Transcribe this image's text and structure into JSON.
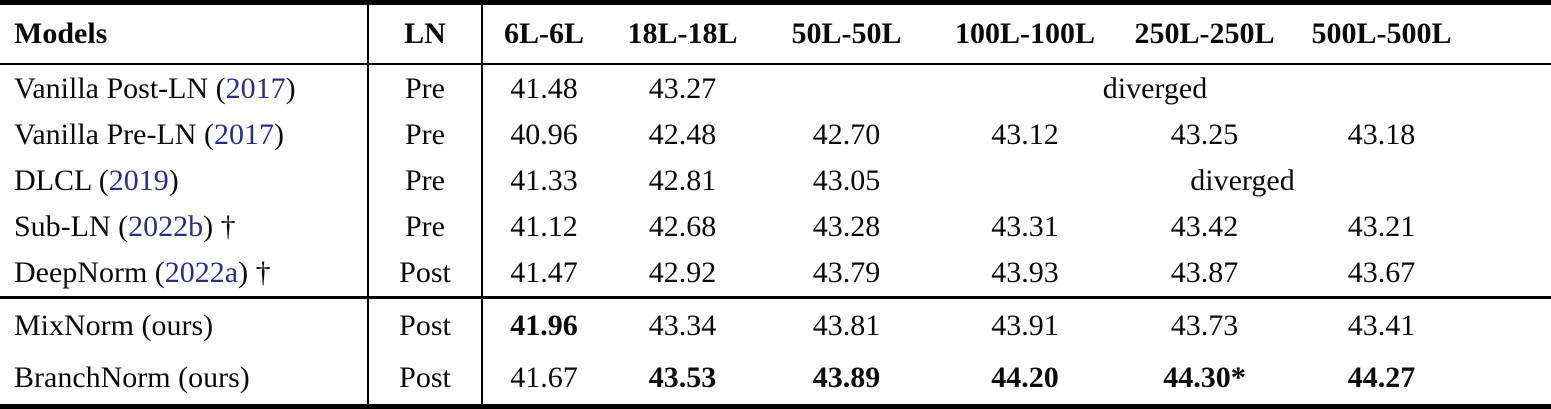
{
  "table": {
    "header": {
      "models": "Models",
      "ln": "LN",
      "scales": [
        "6L-6L",
        "18L-18L",
        "50L-50L",
        "100L-100L",
        "250L-250L",
        "500L-500L"
      ]
    },
    "sections": [
      {
        "rows": [
          {
            "model_prefix": "Vanilla Post-LN (",
            "citation": "2017",
            "model_suffix": ")",
            "ln": "Pre",
            "cells": [
              {
                "t": "41.48"
              },
              {
                "t": "43.27"
              },
              {
                "t": "diverged",
                "span": 4
              }
            ]
          },
          {
            "model_prefix": "Vanilla Pre-LN (",
            "citation": "2017",
            "model_suffix": ")",
            "ln": "Pre",
            "cells": [
              {
                "t": "40.96"
              },
              {
                "t": "42.48"
              },
              {
                "t": "42.70"
              },
              {
                "t": "43.12"
              },
              {
                "t": "43.25"
              },
              {
                "t": "43.18"
              }
            ]
          },
          {
            "model_prefix": "DLCL (",
            "citation": "2019",
            "model_suffix": ")",
            "ln": "Pre",
            "cells": [
              {
                "t": "41.33"
              },
              {
                "t": "42.81"
              },
              {
                "t": "43.05"
              },
              {
                "t": "diverged",
                "span": 3
              }
            ]
          },
          {
            "model_prefix": "Sub-LN (",
            "citation": "2022b",
            "model_suffix": ") †",
            "ln": "Pre",
            "cells": [
              {
                "t": "41.12"
              },
              {
                "t": "42.68"
              },
              {
                "t": "43.28"
              },
              {
                "t": "43.31"
              },
              {
                "t": "43.42"
              },
              {
                "t": "43.21"
              }
            ]
          },
          {
            "model_prefix": "DeepNorm (",
            "citation": "2022a",
            "model_suffix": ") †",
            "ln": "Post",
            "cells": [
              {
                "t": "41.47"
              },
              {
                "t": "42.92"
              },
              {
                "t": "43.79"
              },
              {
                "t": "43.93"
              },
              {
                "t": "43.87"
              },
              {
                "t": "43.67"
              }
            ]
          }
        ]
      },
      {
        "rows": [
          {
            "model_prefix": "MixNorm (ours)",
            "citation": "",
            "model_suffix": "",
            "ln": "Post",
            "cells": [
              {
                "t": "41.96",
                "bold": true
              },
              {
                "t": "43.34"
              },
              {
                "t": "43.81"
              },
              {
                "t": "43.91"
              },
              {
                "t": "43.73"
              },
              {
                "t": "43.41"
              }
            ]
          },
          {
            "model_prefix": "BranchNorm (ours)",
            "citation": "",
            "model_suffix": "",
            "ln": "Post",
            "cells": [
              {
                "t": "41.67"
              },
              {
                "t": "43.53",
                "bold": true
              },
              {
                "t": "43.89",
                "bold": true
              },
              {
                "t": "44.20",
                "bold": true
              },
              {
                "t": "44.30*",
                "bold": true
              },
              {
                "t": "44.27",
                "bold": true
              }
            ]
          }
        ]
      }
    ]
  },
  "colors": {
    "citation_blue": "#26308c",
    "text": "#0a0a0a",
    "rule": "#000000",
    "background": "#ffffff"
  }
}
